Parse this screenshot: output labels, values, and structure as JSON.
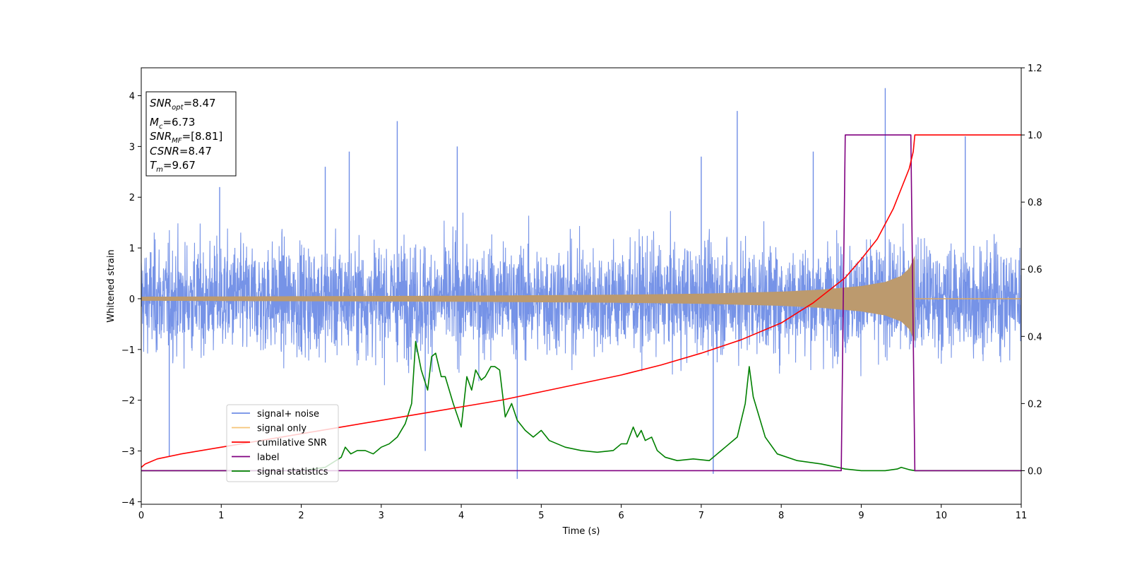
{
  "chart_data": {
    "type": "line",
    "title": "",
    "xlabel": "Time (s)",
    "ylabel": "Whitened strain",
    "y2label": "",
    "xlim": [
      0,
      11
    ],
    "ylim": [
      -4.05,
      4.55
    ],
    "y2lim": [
      -0.1,
      1.2
    ],
    "xticks": [
      "0",
      "1",
      "2",
      "3",
      "4",
      "5",
      "6",
      "7",
      "8",
      "9",
      "10",
      "11"
    ],
    "yticks": [
      "−4",
      "−3",
      "−2",
      "−1",
      "0",
      "1",
      "2",
      "3",
      "4"
    ],
    "y2ticks": [
      "0.0",
      "0.2",
      "0.4",
      "0.6",
      "0.8",
      "1.0",
      "1.2"
    ],
    "grid": false,
    "legend_position": "lower-left",
    "annotation": {
      "snr_opt": {
        "base": "SNR",
        "sub": "opt",
        "value": "=8.47"
      },
      "mc": {
        "base": "M",
        "sub": "c",
        "value": "=6.73"
      },
      "snr_mf": {
        "base": "SNR",
        "sub": "MF",
        "value": "=[8.81]"
      },
      "csnr": {
        "base": "CSNR",
        "value": "=8.47"
      },
      "tm": {
        "base": "T",
        "sub": "m",
        "value": "=9.67"
      }
    },
    "series": [
      {
        "name": "signal+ noise",
        "axis": "left",
        "color": "#6f8de6",
        "note": "noise envelope ~±2.4 with spikes",
        "spikes": [
          [
            0.35,
            -3.1
          ],
          [
            0.98,
            2.2
          ],
          [
            2.3,
            2.6
          ],
          [
            2.6,
            2.9
          ],
          [
            3.2,
            3.5
          ],
          [
            3.55,
            -3.0
          ],
          [
            3.95,
            3.0
          ],
          [
            4.7,
            -3.55
          ],
          [
            7.0,
            2.8
          ],
          [
            7.15,
            -3.45
          ],
          [
            7.45,
            3.7
          ],
          [
            8.4,
            2.9
          ],
          [
            9.3,
            4.15
          ],
          [
            10.3,
            3.2
          ],
          [
            11.0,
            1.8
          ]
        ]
      },
      {
        "name": "signal only",
        "axis": "left",
        "color": "#f5c477",
        "amplitude": [
          [
            0,
            0.04
          ],
          [
            2,
            0.05
          ],
          [
            4,
            0.06
          ],
          [
            6,
            0.08
          ],
          [
            7,
            0.1
          ],
          [
            8,
            0.14
          ],
          [
            8.5,
            0.18
          ],
          [
            9.0,
            0.25
          ],
          [
            9.3,
            0.33
          ],
          [
            9.5,
            0.45
          ],
          [
            9.6,
            0.6
          ],
          [
            9.67,
            0.85
          ],
          [
            9.68,
            0.0
          ],
          [
            11,
            0.0
          ]
        ]
      },
      {
        "name": "cumilative SNR",
        "axis": "right",
        "color": "#ff0000",
        "x": [
          0.0,
          0.05,
          0.2,
          0.5,
          1.0,
          1.5,
          2.0,
          2.5,
          3.0,
          3.5,
          4.0,
          4.5,
          5.0,
          5.5,
          6.0,
          6.5,
          7.0,
          7.5,
          8.0,
          8.4,
          8.8,
          9.0,
          9.2,
          9.4,
          9.5,
          9.6,
          9.65,
          9.67,
          11.0
        ],
        "y": [
          0.01,
          0.02,
          0.035,
          0.05,
          0.07,
          0.09,
          0.11,
          0.13,
          0.15,
          0.17,
          0.19,
          0.21,
          0.235,
          0.26,
          0.285,
          0.315,
          0.35,
          0.39,
          0.44,
          0.5,
          0.575,
          0.63,
          0.69,
          0.78,
          0.84,
          0.9,
          0.95,
          1.0,
          1.0
        ]
      },
      {
        "name": "label",
        "axis": "right",
        "color": "#800080",
        "x": [
          0.0,
          8.75,
          8.8,
          9.62,
          9.67,
          11.0
        ],
        "y": [
          0.0,
          0.0,
          1.0,
          1.0,
          0.0,
          0.0
        ]
      },
      {
        "name": "signal statistics",
        "axis": "right",
        "color": "#008000",
        "x": [
          0.0,
          1.0,
          2.0,
          2.3,
          2.5,
          2.55,
          2.62,
          2.7,
          2.8,
          2.9,
          3.0,
          3.1,
          3.2,
          3.3,
          3.38,
          3.43,
          3.5,
          3.58,
          3.63,
          3.68,
          3.75,
          3.8,
          3.9,
          4.0,
          4.07,
          4.13,
          4.18,
          4.25,
          4.3,
          4.37,
          4.42,
          4.48,
          4.55,
          4.63,
          4.7,
          4.8,
          4.9,
          5.0,
          5.1,
          5.3,
          5.5,
          5.7,
          5.9,
          6.0,
          6.07,
          6.15,
          6.2,
          6.25,
          6.3,
          6.38,
          6.45,
          6.55,
          6.7,
          6.9,
          7.1,
          7.3,
          7.45,
          7.55,
          7.6,
          7.65,
          7.7,
          7.8,
          7.95,
          8.2,
          8.5,
          8.8,
          9.0,
          9.3,
          9.45,
          9.5,
          9.6,
          9.67,
          10.0,
          11.0
        ],
        "y": [
          0.0,
          0.0,
          0.0,
          0.01,
          0.04,
          0.07,
          0.05,
          0.06,
          0.06,
          0.05,
          0.07,
          0.08,
          0.1,
          0.14,
          0.2,
          0.385,
          0.3,
          0.24,
          0.34,
          0.35,
          0.28,
          0.28,
          0.2,
          0.13,
          0.28,
          0.24,
          0.3,
          0.27,
          0.28,
          0.31,
          0.31,
          0.3,
          0.16,
          0.2,
          0.15,
          0.12,
          0.1,
          0.12,
          0.09,
          0.07,
          0.06,
          0.055,
          0.06,
          0.08,
          0.08,
          0.13,
          0.1,
          0.12,
          0.09,
          0.1,
          0.06,
          0.04,
          0.03,
          0.035,
          0.03,
          0.07,
          0.1,
          0.2,
          0.31,
          0.22,
          0.18,
          0.1,
          0.05,
          0.03,
          0.02,
          0.005,
          0.0,
          0.0,
          0.005,
          0.01,
          0.003,
          0.0,
          0.0,
          0.0
        ]
      }
    ]
  }
}
